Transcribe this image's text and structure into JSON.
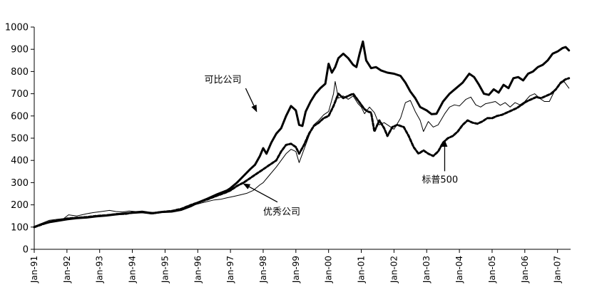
{
  "chart_data": {
    "type": "line",
    "title": "",
    "xlabel": "",
    "ylabel": "",
    "ylim": [
      0,
      1000
    ],
    "yticks": [
      0,
      100,
      200,
      300,
      400,
      500,
      600,
      700,
      800,
      900,
      1000
    ],
    "x_range": [
      1991.0,
      2007.4
    ],
    "x_tick_labels": [
      "Jan-91",
      "Jan-92",
      "Jan-93",
      "Jan-94",
      "Jan-95",
      "Jan-96",
      "Jan-97",
      "Jan-98",
      "Jan-99",
      "Jan-00",
      "Jan-01",
      "Jan-02",
      "Jan-03",
      "Jan-04",
      "Jan-05",
      "Jan-06",
      "Jan-07"
    ],
    "x_tick_values": [
      1991,
      1992,
      1993,
      1994,
      1995,
      1996,
      1997,
      1998,
      1999,
      2000,
      2001,
      2002,
      2003,
      2004,
      2005,
      2006,
      2007
    ],
    "grid": false,
    "legend": "none",
    "series": [
      {
        "name": "可比公司",
        "style": "thick",
        "color": "#000000",
        "points": [
          [
            1991.0,
            100
          ],
          [
            1991.2,
            112
          ],
          [
            1991.5,
            123
          ],
          [
            1991.8,
            130
          ],
          [
            1992.0,
            135
          ],
          [
            1992.3,
            140
          ],
          [
            1992.6,
            143
          ],
          [
            1992.9,
            148
          ],
          [
            1993.2,
            152
          ],
          [
            1993.5,
            157
          ],
          [
            1993.8,
            162
          ],
          [
            1994.0,
            164
          ],
          [
            1994.3,
            167
          ],
          [
            1994.6,
            162
          ],
          [
            1994.9,
            168
          ],
          [
            1995.2,
            170
          ],
          [
            1995.5,
            178
          ],
          [
            1995.8,
            195
          ],
          [
            1996.0,
            210
          ],
          [
            1996.3,
            228
          ],
          [
            1996.6,
            248
          ],
          [
            1996.9,
            265
          ],
          [
            1997.0,
            275
          ],
          [
            1997.2,
            300
          ],
          [
            1997.4,
            330
          ],
          [
            1997.6,
            360
          ],
          [
            1997.75,
            380
          ],
          [
            1997.9,
            420
          ],
          [
            1998.0,
            455
          ],
          [
            1998.1,
            430
          ],
          [
            1998.25,
            480
          ],
          [
            1998.4,
            520
          ],
          [
            1998.55,
            545
          ],
          [
            1998.7,
            600
          ],
          [
            1998.85,
            645
          ],
          [
            1999.0,
            625
          ],
          [
            1999.1,
            560
          ],
          [
            1999.2,
            555
          ],
          [
            1999.3,
            620
          ],
          [
            1999.45,
            665
          ],
          [
            1999.6,
            700
          ],
          [
            1999.75,
            725
          ],
          [
            1999.9,
            745
          ],
          [
            2000.0,
            835
          ],
          [
            2000.1,
            795
          ],
          [
            2000.2,
            820
          ],
          [
            2000.3,
            860
          ],
          [
            2000.45,
            880
          ],
          [
            2000.6,
            860
          ],
          [
            2000.75,
            830
          ],
          [
            2000.85,
            820
          ],
          [
            2000.95,
            880
          ],
          [
            2001.05,
            935
          ],
          [
            2001.15,
            850
          ],
          [
            2001.3,
            815
          ],
          [
            2001.45,
            820
          ],
          [
            2001.6,
            805
          ],
          [
            2001.8,
            795
          ],
          [
            2002.0,
            790
          ],
          [
            2002.2,
            780
          ],
          [
            2002.35,
            750
          ],
          [
            2002.5,
            710
          ],
          [
            2002.65,
            680
          ],
          [
            2002.8,
            640
          ],
          [
            2003.0,
            625
          ],
          [
            2003.15,
            608
          ],
          [
            2003.3,
            610
          ],
          [
            2003.5,
            665
          ],
          [
            2003.7,
            700
          ],
          [
            2003.9,
            725
          ],
          [
            2004.1,
            750
          ],
          [
            2004.3,
            790
          ],
          [
            2004.45,
            775
          ],
          [
            2004.6,
            740
          ],
          [
            2004.75,
            700
          ],
          [
            2004.9,
            695
          ],
          [
            2005.05,
            720
          ],
          [
            2005.2,
            705
          ],
          [
            2005.35,
            740
          ],
          [
            2005.5,
            725
          ],
          [
            2005.65,
            770
          ],
          [
            2005.8,
            775
          ],
          [
            2005.95,
            760
          ],
          [
            2006.1,
            790
          ],
          [
            2006.25,
            800
          ],
          [
            2006.4,
            820
          ],
          [
            2006.55,
            830
          ],
          [
            2006.7,
            850
          ],
          [
            2006.85,
            880
          ],
          [
            2007.0,
            890
          ],
          [
            2007.15,
            905
          ],
          [
            2007.25,
            910
          ],
          [
            2007.35,
            895
          ]
        ]
      },
      {
        "name": "优秀公司",
        "style": "thin",
        "color": "#000000",
        "points": [
          [
            1991.0,
            100
          ],
          [
            1991.2,
            115
          ],
          [
            1991.45,
            130
          ],
          [
            1991.7,
            135
          ],
          [
            1991.9,
            138
          ],
          [
            1992.05,
            155
          ],
          [
            1992.3,
            150
          ],
          [
            1992.6,
            160
          ],
          [
            1992.8,
            165
          ],
          [
            1993.05,
            170
          ],
          [
            1993.3,
            175
          ],
          [
            1993.5,
            170
          ],
          [
            1993.7,
            168
          ],
          [
            1993.9,
            172
          ],
          [
            1994.1,
            170
          ],
          [
            1994.3,
            172
          ],
          [
            1994.5,
            168
          ],
          [
            1994.7,
            165
          ],
          [
            1994.9,
            170
          ],
          [
            1995.1,
            172
          ],
          [
            1995.3,
            172
          ],
          [
            1995.5,
            180
          ],
          [
            1995.7,
            192
          ],
          [
            1995.9,
            200
          ],
          [
            1996.1,
            208
          ],
          [
            1996.3,
            215
          ],
          [
            1996.5,
            222
          ],
          [
            1996.7,
            225
          ],
          [
            1996.9,
            232
          ],
          [
            1997.1,
            238
          ],
          [
            1997.3,
            245
          ],
          [
            1997.5,
            252
          ],
          [
            1997.7,
            265
          ],
          [
            1997.9,
            290
          ],
          [
            1998.0,
            300
          ],
          [
            1998.2,
            335
          ],
          [
            1998.4,
            370
          ],
          [
            1998.55,
            400
          ],
          [
            1998.7,
            430
          ],
          [
            1998.85,
            450
          ],
          [
            1999.0,
            440
          ],
          [
            1999.1,
            390
          ],
          [
            1999.25,
            450
          ],
          [
            1999.4,
            510
          ],
          [
            1999.55,
            560
          ],
          [
            1999.7,
            580
          ],
          [
            1999.85,
            605
          ],
          [
            2000.0,
            620
          ],
          [
            2000.15,
            700
          ],
          [
            2000.2,
            755
          ],
          [
            2000.3,
            680
          ],
          [
            2000.45,
            690
          ],
          [
            2000.6,
            675
          ],
          [
            2000.75,
            690
          ],
          [
            2000.9,
            655
          ],
          [
            2001.0,
            640
          ],
          [
            2001.1,
            610
          ],
          [
            2001.25,
            640
          ],
          [
            2001.4,
            615
          ],
          [
            2001.55,
            560
          ],
          [
            2001.7,
            570
          ],
          [
            2001.85,
            555
          ],
          [
            2002.0,
            540
          ],
          [
            2002.2,
            590
          ],
          [
            2002.35,
            660
          ],
          [
            2002.5,
            670
          ],
          [
            2002.65,
            620
          ],
          [
            2002.8,
            580
          ],
          [
            2002.9,
            530
          ],
          [
            2003.05,
            575
          ],
          [
            2003.2,
            550
          ],
          [
            2003.35,
            560
          ],
          [
            2003.55,
            610
          ],
          [
            2003.7,
            640
          ],
          [
            2003.85,
            650
          ],
          [
            2004.0,
            645
          ],
          [
            2004.2,
            675
          ],
          [
            2004.35,
            685
          ],
          [
            2004.5,
            650
          ],
          [
            2004.65,
            640
          ],
          [
            2004.8,
            655
          ],
          [
            2004.95,
            660
          ],
          [
            2005.1,
            665
          ],
          [
            2005.25,
            648
          ],
          [
            2005.4,
            660
          ],
          [
            2005.55,
            640
          ],
          [
            2005.7,
            660
          ],
          [
            2005.85,
            650
          ],
          [
            2006.0,
            665
          ],
          [
            2006.15,
            690
          ],
          [
            2006.3,
            700
          ],
          [
            2006.45,
            680
          ],
          [
            2006.6,
            665
          ],
          [
            2006.75,
            665
          ],
          [
            2006.9,
            710
          ],
          [
            2007.05,
            740
          ],
          [
            2007.2,
            755
          ],
          [
            2007.35,
            725
          ]
        ]
      },
      {
        "name": "标普500",
        "style": "dashed",
        "color": "#000000",
        "points": [
          [
            1991.0,
            100
          ],
          [
            1991.2,
            110
          ],
          [
            1991.5,
            125
          ],
          [
            1991.8,
            132
          ],
          [
            1992.0,
            138
          ],
          [
            1992.3,
            142
          ],
          [
            1992.6,
            145
          ],
          [
            1992.9,
            150
          ],
          [
            1993.2,
            153
          ],
          [
            1993.5,
            158
          ],
          [
            1993.8,
            160
          ],
          [
            1994.0,
            165
          ],
          [
            1994.3,
            168
          ],
          [
            1994.6,
            162
          ],
          [
            1994.9,
            168
          ],
          [
            1995.2,
            172
          ],
          [
            1995.5,
            182
          ],
          [
            1995.8,
            200
          ],
          [
            1996.0,
            210
          ],
          [
            1996.3,
            225
          ],
          [
            1996.6,
            242
          ],
          [
            1996.9,
            258
          ],
          [
            1997.0,
            265
          ],
          [
            1997.2,
            285
          ],
          [
            1997.4,
            300
          ],
          [
            1997.6,
            320
          ],
          [
            1997.8,
            340
          ],
          [
            1998.0,
            360
          ],
          [
            1998.2,
            380
          ],
          [
            1998.4,
            400
          ],
          [
            1998.55,
            440
          ],
          [
            1998.7,
            470
          ],
          [
            1998.85,
            475
          ],
          [
            1999.0,
            460
          ],
          [
            1999.1,
            430
          ],
          [
            1999.25,
            470
          ],
          [
            1999.4,
            520
          ],
          [
            1999.55,
            555
          ],
          [
            1999.7,
            570
          ],
          [
            1999.85,
            590
          ],
          [
            2000.0,
            600
          ],
          [
            2000.15,
            645
          ],
          [
            2000.3,
            700
          ],
          [
            2000.45,
            680
          ],
          [
            2000.6,
            690
          ],
          [
            2000.75,
            700
          ],
          [
            2000.9,
            670
          ],
          [
            2001.0,
            650
          ],
          [
            2001.1,
            630
          ],
          [
            2001.2,
            620
          ],
          [
            2001.3,
            615
          ],
          [
            2001.4,
            530
          ],
          [
            2001.55,
            580
          ],
          [
            2001.7,
            545
          ],
          [
            2001.8,
            510
          ],
          [
            2001.95,
            550
          ],
          [
            2002.1,
            560
          ],
          [
            2002.3,
            550
          ],
          [
            2002.45,
            510
          ],
          [
            2002.6,
            460
          ],
          [
            2002.75,
            430
          ],
          [
            2002.9,
            445
          ],
          [
            2003.05,
            430
          ],
          [
            2003.2,
            420
          ],
          [
            2003.35,
            440
          ],
          [
            2003.5,
            480
          ],
          [
            2003.65,
            500
          ],
          [
            2003.8,
            510
          ],
          [
            2003.95,
            530
          ],
          [
            2004.1,
            560
          ],
          [
            2004.25,
            580
          ],
          [
            2004.4,
            570
          ],
          [
            2004.55,
            565
          ],
          [
            2004.7,
            575
          ],
          [
            2004.85,
            590
          ],
          [
            2005.0,
            590
          ],
          [
            2005.15,
            600
          ],
          [
            2005.3,
            605
          ],
          [
            2005.45,
            615
          ],
          [
            2005.6,
            625
          ],
          [
            2005.75,
            635
          ],
          [
            2005.9,
            650
          ],
          [
            2006.05,
            665
          ],
          [
            2006.2,
            675
          ],
          [
            2006.35,
            685
          ],
          [
            2006.5,
            680
          ],
          [
            2006.65,
            690
          ],
          [
            2006.8,
            700
          ],
          [
            2006.95,
            720
          ],
          [
            2007.1,
            750
          ],
          [
            2007.25,
            765
          ],
          [
            2007.35,
            770
          ]
        ]
      }
    ],
    "annotations": [
      {
        "text": "可比公司",
        "series": "可比公司",
        "label_at": [
          1996.2,
          750
        ],
        "arrow_to": [
          1997.8,
          620
        ]
      },
      {
        "text": "优秀公司",
        "series": "优秀公司",
        "label_at": [
          1998.0,
          155
        ],
        "arrow_to": [
          1997.4,
          295
        ]
      },
      {
        "text": "标普500",
        "series": "标普500",
        "label_at": [
          2002.85,
          300
        ],
        "arrow_to": [
          2003.55,
          490
        ]
      }
    ]
  }
}
